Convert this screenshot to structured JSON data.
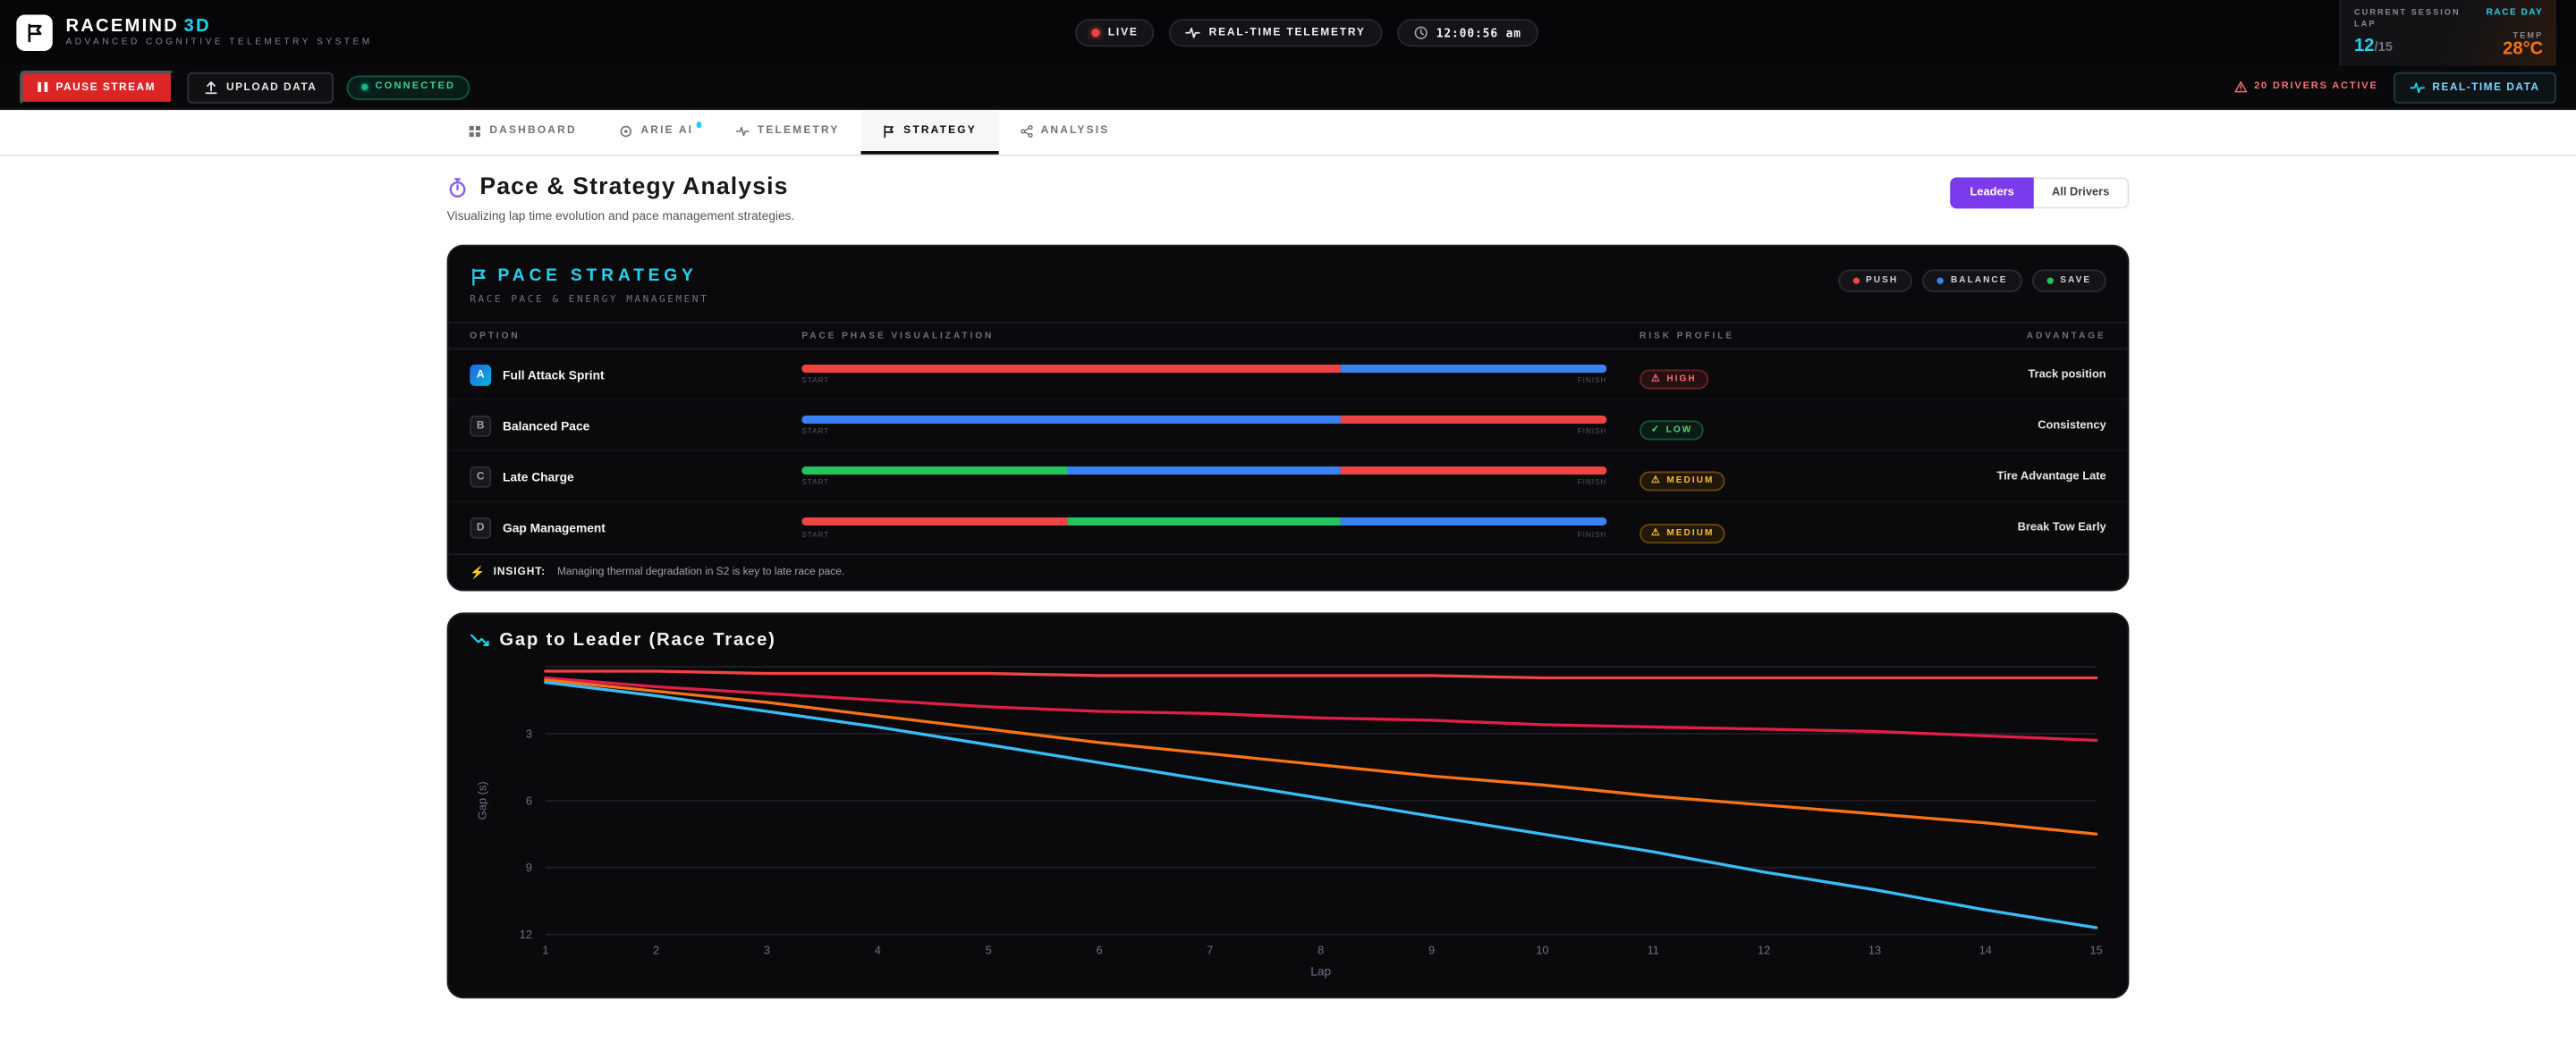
{
  "header": {
    "brand": {
      "name": "RACEMIND",
      "suffix": "3D",
      "tagline": "ADVANCED COGNITIVE TELEMETRY SYSTEM"
    },
    "pills": {
      "live": "LIVE",
      "telemetry": "REAL-TIME TELEMETRY",
      "clock": "12:00:56 am"
    },
    "session_panel": {
      "label": "CURRENT SESSION",
      "session": "RACE DAY",
      "lap_label": "LAP",
      "lap_current": "12",
      "lap_total": "/15",
      "temp_label": "TEMP",
      "temp": "28°C"
    }
  },
  "toolbar": {
    "pause": "PAUSE STREAM",
    "upload": "UPLOAD DATA",
    "connected": "CONNECTED",
    "drivers_active": "20 DRIVERS ACTIVE",
    "realtime_data": "REAL-TIME DATA"
  },
  "tabs": [
    {
      "label": "DASHBOARD",
      "active": false,
      "has_notification_dot": false
    },
    {
      "label": "ARIE AI",
      "active": false,
      "has_notification_dot": true
    },
    {
      "label": "TELEMETRY",
      "active": false,
      "has_notification_dot": false
    },
    {
      "label": "STRATEGY",
      "active": true,
      "has_notification_dot": false
    },
    {
      "label": "ANALYSIS",
      "active": false,
      "has_notification_dot": false
    }
  ],
  "page": {
    "title": "Pace & Strategy Analysis",
    "subtitle": "Visualizing lap time evolution and pace management strategies.",
    "toggle": {
      "leaders": "Leaders",
      "all_drivers": "All Drivers"
    }
  },
  "strategy_card": {
    "title": "PACE STRATEGY",
    "subtitle": "RACE PACE & ENERGY MANAGEMENT",
    "modes": [
      {
        "label": "PUSH",
        "color": "#ef4444"
      },
      {
        "label": "BALANCE",
        "color": "#3b82f6"
      },
      {
        "label": "SAVE",
        "color": "#22c55e"
      }
    ],
    "columns": [
      "OPTION",
      "PACE PHASE VISUALIZATION",
      "RISK PROFILE",
      "ADVANTAGE"
    ],
    "bar_labels": {
      "start": "START",
      "finish": "FINISH"
    },
    "rows": [
      {
        "key": "A",
        "name": "Full Attack Sprint",
        "segments": [
          {
            "color": "#ef4444",
            "pct": 67
          },
          {
            "color": "#3b82f6",
            "pct": 33
          }
        ],
        "risk": "HIGH",
        "risk_level": "high",
        "advantage": "Track position"
      },
      {
        "key": "B",
        "name": "Balanced Pace",
        "segments": [
          {
            "color": "#3b82f6",
            "pct": 67
          },
          {
            "color": "#ef4444",
            "pct": 33
          }
        ],
        "risk": "LOW",
        "risk_level": "low",
        "advantage": "Consistency"
      },
      {
        "key": "C",
        "name": "Late Charge",
        "segments": [
          {
            "color": "#22c55e",
            "pct": 33
          },
          {
            "color": "#3b82f6",
            "pct": 34
          },
          {
            "color": "#ef4444",
            "pct": 33
          }
        ],
        "risk": "MEDIUM",
        "risk_level": "medium",
        "advantage": "Tire Advantage Late"
      },
      {
        "key": "D",
        "name": "Gap Management",
        "segments": [
          {
            "color": "#ef4444",
            "pct": 33
          },
          {
            "color": "#22c55e",
            "pct": 34
          },
          {
            "color": "#3b82f6",
            "pct": 33
          }
        ],
        "risk": "MEDIUM",
        "risk_level": "medium",
        "advantage": "Break Tow Early"
      }
    ],
    "insight_label": "INSIGHT:",
    "insight_text": "Managing thermal degradation in S2 is key to late race pace."
  },
  "chart_card": {
    "title": "Gap to Leader (Race Trace)"
  },
  "chart_data": {
    "type": "line",
    "title": "Gap to Leader (Race Trace)",
    "xlabel": "Lap",
    "ylabel": "Gap (s)",
    "x": [
      1,
      2,
      3,
      4,
      5,
      6,
      7,
      8,
      9,
      10,
      11,
      12,
      13,
      14,
      15
    ],
    "y_ticks": [
      3,
      6,
      9,
      12
    ],
    "ylim": [
      0,
      12
    ],
    "y_inverted": true,
    "grid": "horizontal",
    "legend": "none",
    "series": [
      {
        "name": "red-line",
        "color": "#ef4444",
        "values": [
          0.2,
          0.2,
          0.3,
          0.3,
          0.3,
          0.4,
          0.4,
          0.4,
          0.4,
          0.5,
          0.5,
          0.5,
          0.5,
          0.5,
          0.5
        ]
      },
      {
        "name": "crimson-line",
        "color": "#e11d48",
        "values": [
          0.5,
          0.9,
          1.2,
          1.5,
          1.8,
          2.0,
          2.1,
          2.3,
          2.4,
          2.6,
          2.7,
          2.8,
          2.9,
          3.1,
          3.3
        ]
      },
      {
        "name": "orange-line",
        "color": "#f97316",
        "values": [
          0.6,
          1.1,
          1.6,
          2.2,
          2.8,
          3.4,
          3.9,
          4.4,
          4.9,
          5.3,
          5.8,
          6.2,
          6.6,
          7.0,
          7.5
        ]
      },
      {
        "name": "cyan-line",
        "color": "#38bdf8",
        "values": [
          0.7,
          1.3,
          2.0,
          2.7,
          3.5,
          4.3,
          5.1,
          5.9,
          6.7,
          7.5,
          8.3,
          9.2,
          10.0,
          10.9,
          11.7
        ]
      }
    ]
  }
}
